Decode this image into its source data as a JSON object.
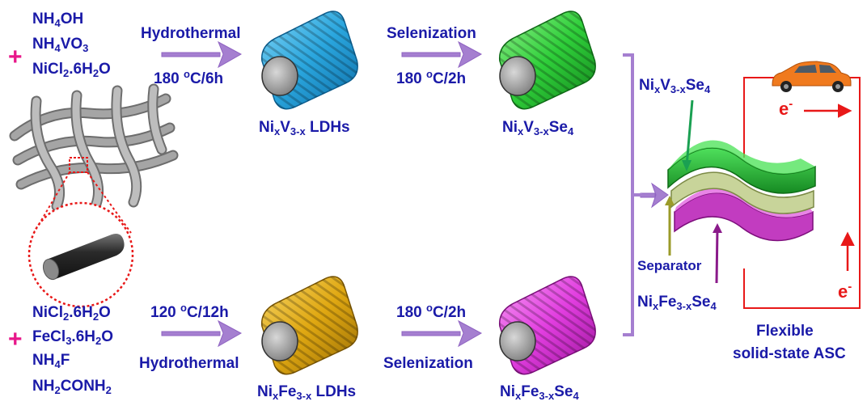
{
  "top_route": {
    "reagents": [
      "NH",
      "4",
      "OH",
      "NH",
      "4",
      "VO",
      "3",
      "NiCl",
      "2",
      ".6H",
      "2",
      "O"
    ],
    "step1_label": "Hydrothermal",
    "step1_condition": [
      "180 ",
      "o",
      "C/6h"
    ],
    "intermediate": [
      "Ni",
      "x",
      "V",
      "3-x",
      " LDHs"
    ],
    "step2_label": "Selenization",
    "step2_condition": [
      "180 ",
      "o",
      "C/2h"
    ],
    "product": [
      "Ni",
      "x",
      "V",
      "3-x",
      "Se",
      "4"
    ]
  },
  "bottom_route": {
    "reagents": [
      "NiCl",
      "2",
      ".6H",
      "2",
      "O",
      "FeCl",
      "3",
      ".6H",
      "2",
      "O",
      "NH",
      "4",
      "F",
      "NH",
      "2",
      "CONH",
      "2"
    ],
    "step1_label": "Hydrothermal",
    "step1_condition": [
      "120 ",
      "o",
      "C/12h"
    ],
    "intermediate": [
      "Ni",
      "x",
      "Fe",
      "3-x",
      " LDHs"
    ],
    "step2_label": "Selenization",
    "step2_condition": [
      "180 ",
      "o",
      "C/2h"
    ],
    "product": [
      "Ni",
      "x",
      "Fe",
      "3-x",
      "Se",
      "4"
    ]
  },
  "device": {
    "positive_label": [
      "Ni",
      "x",
      "V",
      "3-x",
      "Se",
      "4"
    ],
    "separator_label": "Separator",
    "negative_label": [
      "Ni",
      "x",
      "Fe",
      "3-x",
      "Se",
      "4"
    ],
    "caption_line1": "Flexible",
    "caption_line2": "solid-state ASC",
    "electron_top": [
      "e",
      "-"
    ],
    "electron_side": [
      "e",
      "-"
    ]
  },
  "plus_signs": [
    "+",
    "+"
  ],
  "colors": {
    "text": "#1a1aa8",
    "plus": "#e8178a",
    "arrow": "#9b6fc7",
    "circuit": "#e81818",
    "vanadium_ldh": "#2aa6de",
    "vanadium_selenide": "#2fcf3a",
    "iron_ldh": "#e0a812",
    "iron_selenide": "#e23ee0",
    "car": "#f07a1e"
  },
  "icons": [
    "carbon-cloth-icon",
    "fiber-icon",
    "nanorod-bundle-icon",
    "electrode-sandwich-icon",
    "car-icon"
  ]
}
